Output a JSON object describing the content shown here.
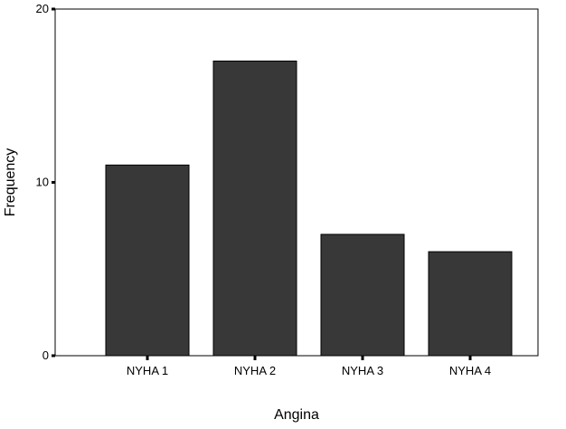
{
  "chart_data": {
    "type": "bar",
    "title": "",
    "xlabel": "Angina",
    "ylabel": "Frequency",
    "categories": [
      "NYHA 1",
      "NYHA 2",
      "NYHA 3",
      "NYHA 4"
    ],
    "values": [
      11,
      17,
      7,
      6
    ],
    "ylim": [
      0,
      20
    ],
    "yticks": [
      0,
      10,
      20
    ],
    "ytick_labels": [
      "0",
      "10",
      "20"
    ],
    "grid": false,
    "legend": "none",
    "bar_color": "#383838",
    "frame_color": "#000000"
  }
}
